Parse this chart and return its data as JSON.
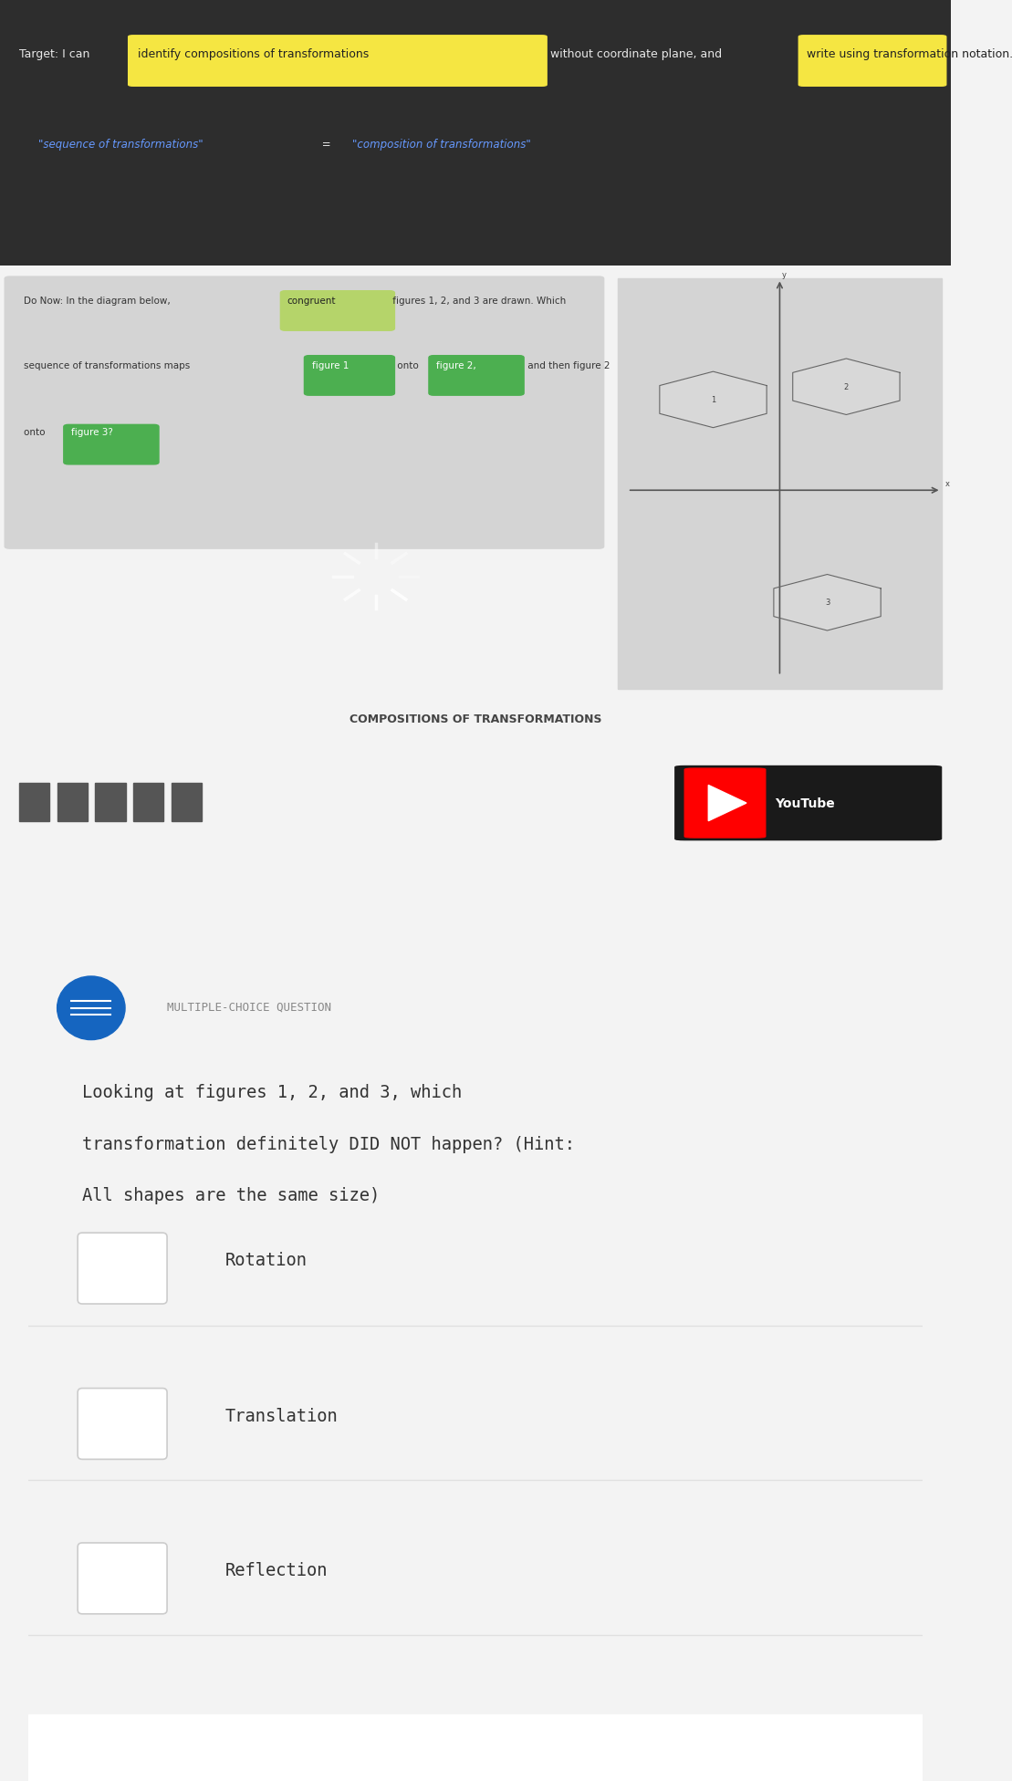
{
  "bg_top": "#2d2d2d",
  "bg_video_area": "#b0b0b0",
  "bg_white": "#ffffff",
  "bg_light": "#f3f3f3",
  "bg_dark_bar": "#1a1a1a",
  "target_text": "Target: I can identify compositions of transformations without coordinate plane, and write using transformation notation.",
  "sequence_text": "\"sequence of transformations\" = \"composition of transformations\"",
  "do_now_text": "Do Now: In the diagram below, congruent figures 1, 2, and 3 are drawn. Which\nsequence of transformations maps figure 1 onto figure 2, and then figure 2\nonto figure 3?",
  "compositions_title": "COMPOSITIONS OF TRANSFORMATIONS",
  "youtube_text": "YouTube",
  "mcq_label": "MULTIPLE-CHOICE QUESTION",
  "question_text": "Looking at figures 1, 2, and 3, which\ntransformation definitely DID NOT happen? (Hint:\nAll shapes are the same size)",
  "choices": [
    "Rotation",
    "Translation",
    "Reflection"
  ],
  "highlight_yellow": "#f5e642",
  "highlight_green_light": "#b5d46a",
  "highlight_green_dark": "#4caf50",
  "highlight_blue": "#2979ff",
  "text_dark": "#333333",
  "text_medium": "#555555",
  "text_gray": "#888888",
  "choice_text_color": "#333333",
  "checkbox_color": "#cccccc",
  "divider_color": "#e0e0e0",
  "icon_blue": "#1565c0",
  "youtube_red": "#ff0000",
  "youtube_bg": "#1a1a1a"
}
